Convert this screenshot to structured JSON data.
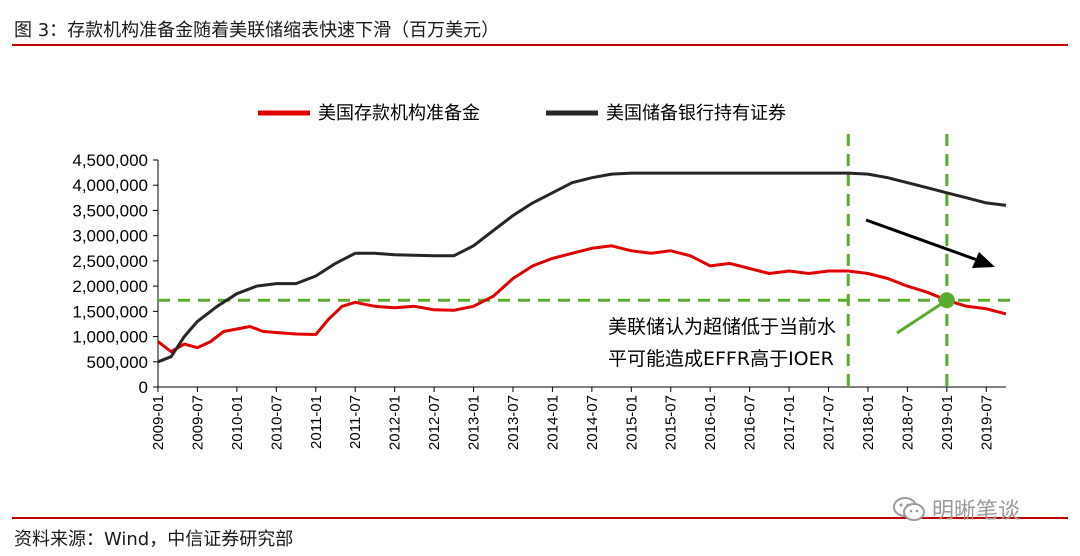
{
  "header": {
    "title": "图 3：存款机构准备金随着美联储缩表快速下滑（百万美元）"
  },
  "footer": {
    "source": "资料来源：Wind，中信证券研究部",
    "watermark": "明晰笔谈"
  },
  "colors": {
    "accent_rule": "#c00000",
    "series_reserves": "#e00000",
    "series_securities": "#262626",
    "guide": "#5aab2e"
  },
  "chart_data": {
    "type": "line",
    "x_date_range": [
      "2009-01",
      "2019-10"
    ],
    "ylim": [
      0,
      4500000
    ],
    "y_ticks": [
      {
        "value": 0,
        "label": "0"
      },
      {
        "value": 500000,
        "label": "500,000"
      },
      {
        "value": 1000000,
        "label": "1,000,000"
      },
      {
        "value": 1500000,
        "label": "1,500,000"
      },
      {
        "value": 2000000,
        "label": "2,000,000"
      },
      {
        "value": 2500000,
        "label": "2,500,000"
      },
      {
        "value": 3000000,
        "label": "3,000,000"
      },
      {
        "value": 3500000,
        "label": "3,500,000"
      },
      {
        "value": 4000000,
        "label": "4,000,000"
      },
      {
        "value": 4500000,
        "label": "4,500,000"
      }
    ],
    "x_ticks": [
      "2009-01",
      "2009-07",
      "2010-01",
      "2010-07",
      "2011-01",
      "2011-07",
      "2012-01",
      "2012-07",
      "2013-01",
      "2013-07",
      "2014-01",
      "2014-07",
      "2015-01",
      "2015-07",
      "2016-01",
      "2016-07",
      "2017-01",
      "2017-07",
      "2018-01",
      "2018-07",
      "2019-01",
      "2019-07"
    ],
    "legend": {
      "placement": "top"
    },
    "series": [
      {
        "name": "美国存款机构准备金",
        "color": "#e00000",
        "points": [
          [
            "2009-01",
            900000
          ],
          [
            "2009-03",
            700000
          ],
          [
            "2009-05",
            850000
          ],
          [
            "2009-07",
            780000
          ],
          [
            "2009-09",
            900000
          ],
          [
            "2009-11",
            1100000
          ],
          [
            "2010-01",
            1150000
          ],
          [
            "2010-03",
            1200000
          ],
          [
            "2010-05",
            1100000
          ],
          [
            "2010-07",
            1080000
          ],
          [
            "2010-10",
            1050000
          ],
          [
            "2011-01",
            1040000
          ],
          [
            "2011-03",
            1350000
          ],
          [
            "2011-05",
            1600000
          ],
          [
            "2011-07",
            1680000
          ],
          [
            "2011-10",
            1600000
          ],
          [
            "2012-01",
            1570000
          ],
          [
            "2012-04",
            1600000
          ],
          [
            "2012-07",
            1530000
          ],
          [
            "2012-10",
            1520000
          ],
          [
            "2013-01",
            1600000
          ],
          [
            "2013-04",
            1800000
          ],
          [
            "2013-07",
            2150000
          ],
          [
            "2013-10",
            2400000
          ],
          [
            "2014-01",
            2550000
          ],
          [
            "2014-04",
            2650000
          ],
          [
            "2014-07",
            2750000
          ],
          [
            "2014-10",
            2800000
          ],
          [
            "2015-01",
            2700000
          ],
          [
            "2015-04",
            2650000
          ],
          [
            "2015-07",
            2700000
          ],
          [
            "2015-10",
            2600000
          ],
          [
            "2016-01",
            2400000
          ],
          [
            "2016-04",
            2450000
          ],
          [
            "2016-07",
            2350000
          ],
          [
            "2016-10",
            2250000
          ],
          [
            "2017-01",
            2300000
          ],
          [
            "2017-04",
            2250000
          ],
          [
            "2017-07",
            2300000
          ],
          [
            "2017-10",
            2300000
          ],
          [
            "2018-01",
            2250000
          ],
          [
            "2018-04",
            2150000
          ],
          [
            "2018-07",
            2000000
          ],
          [
            "2018-10",
            1880000
          ],
          [
            "2019-01",
            1720000
          ],
          [
            "2019-04",
            1600000
          ],
          [
            "2019-07",
            1550000
          ],
          [
            "2019-10",
            1450000
          ]
        ]
      },
      {
        "name": "美国储备银行持有证券",
        "color": "#262626",
        "points": [
          [
            "2009-01",
            500000
          ],
          [
            "2009-03",
            600000
          ],
          [
            "2009-05",
            1000000
          ],
          [
            "2009-07",
            1300000
          ],
          [
            "2009-10",
            1600000
          ],
          [
            "2010-01",
            1850000
          ],
          [
            "2010-04",
            2000000
          ],
          [
            "2010-07",
            2050000
          ],
          [
            "2010-10",
            2050000
          ],
          [
            "2011-01",
            2200000
          ],
          [
            "2011-04",
            2450000
          ],
          [
            "2011-07",
            2650000
          ],
          [
            "2011-10",
            2650000
          ],
          [
            "2012-01",
            2620000
          ],
          [
            "2012-07",
            2600000
          ],
          [
            "2012-10",
            2600000
          ],
          [
            "2013-01",
            2800000
          ],
          [
            "2013-04",
            3100000
          ],
          [
            "2013-07",
            3400000
          ],
          [
            "2013-10",
            3650000
          ],
          [
            "2014-01",
            3850000
          ],
          [
            "2014-04",
            4050000
          ],
          [
            "2014-07",
            4150000
          ],
          [
            "2014-10",
            4220000
          ],
          [
            "2015-01",
            4240000
          ],
          [
            "2016-01",
            4240000
          ],
          [
            "2017-01",
            4240000
          ],
          [
            "2017-10",
            4240000
          ],
          [
            "2018-01",
            4220000
          ],
          [
            "2018-04",
            4150000
          ],
          [
            "2018-07",
            4050000
          ],
          [
            "2018-10",
            3950000
          ],
          [
            "2019-01",
            3850000
          ],
          [
            "2019-04",
            3750000
          ],
          [
            "2019-07",
            3650000
          ],
          [
            "2019-10",
            3600000
          ]
        ]
      }
    ],
    "annotations": {
      "text_line1": "美联储认为超储低于当前水",
      "text_line2": "平可能造成EFFR高于IOER",
      "horizontal_level": 1720000,
      "vertical_dates": [
        "2017-10",
        "2019-01"
      ],
      "marker_point": [
        "2019-01",
        1720000
      ]
    }
  }
}
